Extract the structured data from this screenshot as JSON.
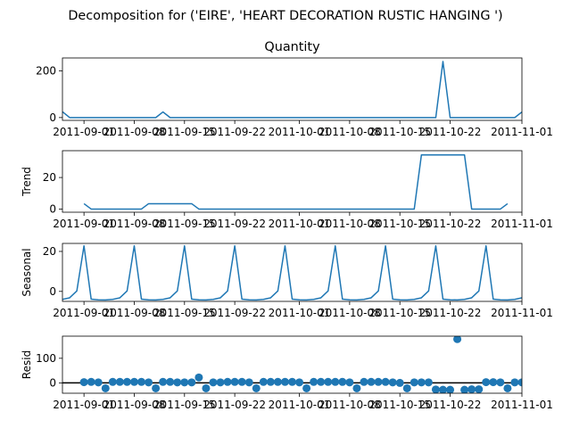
{
  "chart_data": {
    "type": "line",
    "title": "Decomposition for ('EIRE', 'HEART DECORATION RUSTIC HANGING ')",
    "x_start": "2011-08-29",
    "x_end": "2011-11-01",
    "x_ticks": [
      {
        "date": "2011-09-01",
        "label": "2011-09-01"
      },
      {
        "date": "2011-09-08",
        "label": "2011-09-08"
      },
      {
        "date": "2011-09-15",
        "label": "2011-09-15"
      },
      {
        "date": "2011-09-22",
        "label": "2011-09-22"
      },
      {
        "date": "2011-10-01",
        "label": "2011-10-01"
      },
      {
        "date": "2011-10-08",
        "label": "2011-10-08"
      },
      {
        "date": "2011-10-15",
        "label": "2011-10-15"
      },
      {
        "date": "2011-10-22",
        "label": "2011-10-22"
      },
      {
        "date": "2011-11-01",
        "label": "2011-11-01"
      }
    ],
    "panels": [
      {
        "name": "observed",
        "title": "Quantity",
        "ylabel": "",
        "kind": "line",
        "ylim": [
          -12,
          255
        ],
        "yticks": [
          0,
          200
        ],
        "points": [
          [
            "2011-08-29",
            25
          ],
          [
            "2011-08-30",
            0
          ],
          [
            "2011-09-11",
            0
          ],
          [
            "2011-09-12",
            24
          ],
          [
            "2011-09-13",
            0
          ],
          [
            "2011-10-20",
            0
          ],
          [
            "2011-10-21",
            240
          ],
          [
            "2011-10-22",
            0
          ],
          [
            "2011-10-31",
            0
          ],
          [
            "2011-11-01",
            24
          ]
        ]
      },
      {
        "name": "trend",
        "title": "",
        "ylabel": "Trend",
        "kind": "line",
        "ylim": [
          -2,
          37
        ],
        "yticks": [
          0,
          20
        ],
        "points": [
          [
            "2011-08-32",
            3.4
          ],
          [
            "2011-08-33",
            0
          ],
          [
            "2011-09-09",
            0
          ],
          [
            "2011-09-10",
            3.4
          ],
          [
            "2011-09-16",
            3.4
          ],
          [
            "2011-09-17",
            0
          ],
          [
            "2011-10-17",
            0
          ],
          [
            "2011-10-18",
            34.3
          ],
          [
            "2011-10-24",
            34.3
          ],
          [
            "2011-10-25",
            0
          ],
          [
            "2011-10-29",
            0
          ],
          [
            "2011-10-30",
            3.4
          ]
        ]
      },
      {
        "name": "seasonal",
        "title": "",
        "ylabel": "Seasonal",
        "kind": "line",
        "ylim": [
          -5,
          24
        ],
        "yticks": [
          0,
          20
        ],
        "period": 7,
        "pattern": [
          -3.9,
          -4.2,
          -4.3,
          -4.0,
          -3.2,
          0.2,
          22.8
        ],
        "pattern_start": "2011-08-26"
      },
      {
        "name": "resid",
        "title": "",
        "ylabel": "Resid",
        "kind": "scatter",
        "ylim": [
          -42,
          190
        ],
        "yticks": [
          0,
          100
        ],
        "baseline": 0,
        "points": [
          [
            "2011-09-01",
            3
          ],
          [
            "2011-09-02",
            4
          ],
          [
            "2011-09-03",
            2
          ],
          [
            "2011-09-04",
            -22
          ],
          [
            "2011-09-05",
            4
          ],
          [
            "2011-09-06",
            4
          ],
          [
            "2011-09-07",
            4
          ],
          [
            "2011-09-08",
            4
          ],
          [
            "2011-09-09",
            4
          ],
          [
            "2011-09-10",
            2
          ],
          [
            "2011-09-11",
            -22
          ],
          [
            "2011-09-12",
            4
          ],
          [
            "2011-09-13",
            4
          ],
          [
            "2011-09-14",
            2
          ],
          [
            "2011-09-15",
            2
          ],
          [
            "2011-09-16",
            2
          ],
          [
            "2011-09-17",
            22
          ],
          [
            "2011-09-18",
            -22
          ],
          [
            "2011-09-19",
            2
          ],
          [
            "2011-09-20",
            2
          ],
          [
            "2011-09-21",
            4
          ],
          [
            "2011-09-22",
            4
          ],
          [
            "2011-09-23",
            4
          ],
          [
            "2011-09-24",
            2
          ],
          [
            "2011-09-25",
            -22
          ],
          [
            "2011-09-26",
            4
          ],
          [
            "2011-09-27",
            4
          ],
          [
            "2011-09-28",
            4
          ],
          [
            "2011-09-29",
            4
          ],
          [
            "2011-09-30",
            4
          ],
          [
            "2011-10-01",
            2
          ],
          [
            "2011-10-02",
            -22
          ],
          [
            "2011-10-03",
            4
          ],
          [
            "2011-10-04",
            4
          ],
          [
            "2011-10-05",
            4
          ],
          [
            "2011-10-06",
            4
          ],
          [
            "2011-10-07",
            4
          ],
          [
            "2011-10-08",
            2
          ],
          [
            "2011-10-09",
            -22
          ],
          [
            "2011-10-10",
            4
          ],
          [
            "2011-10-11",
            4
          ],
          [
            "2011-10-12",
            4
          ],
          [
            "2011-10-13",
            4
          ],
          [
            "2011-10-14",
            2
          ],
          [
            "2011-10-15",
            0
          ],
          [
            "2011-10-16",
            -22
          ],
          [
            "2011-10-17",
            2
          ],
          [
            "2011-10-18",
            2
          ],
          [
            "2011-10-19",
            2
          ],
          [
            "2011-10-20",
            -27
          ],
          [
            "2011-10-21",
            -28
          ],
          [
            "2011-10-22",
            -28
          ],
          [
            "2011-10-23",
            178
          ],
          [
            "2011-10-24",
            -28
          ],
          [
            "2011-10-25",
            -26
          ],
          [
            "2011-10-26",
            -26
          ],
          [
            "2011-10-27",
            3
          ],
          [
            "2011-10-28",
            3
          ],
          [
            "2011-10-29",
            2
          ],
          [
            "2011-10-30",
            -22
          ],
          [
            "2011-10-31",
            2
          ],
          [
            "2011-11-01",
            2
          ]
        ]
      }
    ],
    "colors": {
      "line": "#1f77b4",
      "marker": "#1f77b4",
      "baseline": "#000000"
    },
    "grid": false,
    "legend": "none"
  }
}
